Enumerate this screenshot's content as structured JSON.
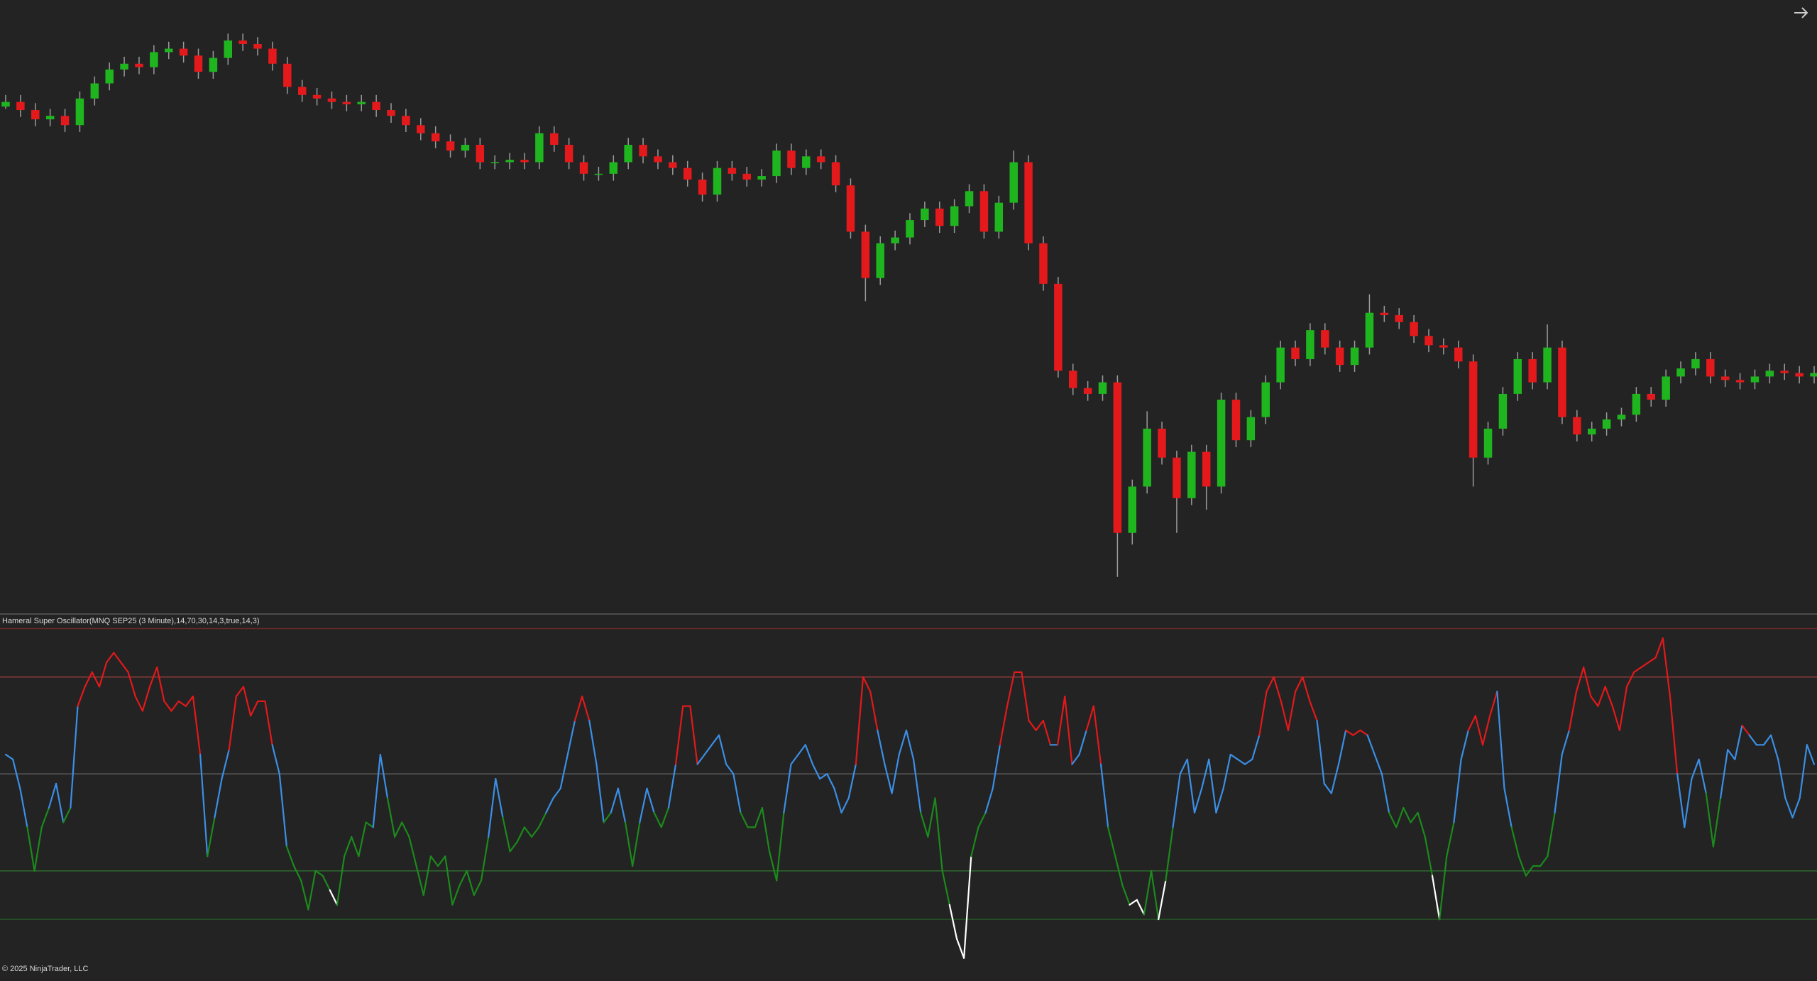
{
  "chart_data": [
    {
      "type": "candlestick",
      "open": [
        438,
        442,
        435,
        427,
        430,
        422,
        445,
        458,
        470,
        475,
        472,
        485,
        488,
        482,
        468,
        480,
        495,
        492,
        488,
        475,
        455,
        448,
        445,
        442,
        440,
        442,
        435,
        430,
        422,
        415,
        408,
        400,
        405,
        390,
        390,
        392,
        390,
        415,
        405,
        390,
        380,
        380,
        390,
        405,
        395,
        390,
        385,
        375,
        362,
        385,
        380,
        375,
        378,
        400,
        385,
        395,
        390,
        370,
        330,
        290,
        320,
        325,
        340,
        350,
        335,
        352,
        365,
        330,
        355,
        390,
        320,
        285,
        210,
        195,
        190,
        200,
        70,
        110,
        160,
        135,
        100,
        140,
        110,
        185,
        150,
        170,
        200,
        230,
        220,
        245,
        230,
        215,
        230,
        260,
        258,
        252,
        240,
        232,
        230,
        218,
        135,
        160,
        190,
        220,
        200,
        230,
        170,
        155,
        160,
        168,
        172,
        190,
        185,
        205,
        212,
        220,
        205,
        202,
        200,
        205,
        210,
        208,
        205
      ],
      "high": [
        448,
        448,
        441,
        436,
        436,
        451,
        464,
        476,
        481,
        481,
        491,
        494,
        494,
        488,
        486,
        501,
        501,
        498,
        494,
        481,
        461,
        454,
        451,
        448,
        448,
        448,
        441,
        436,
        428,
        421,
        414,
        411,
        411,
        396,
        398,
        398,
        421,
        421,
        411,
        396,
        386,
        396,
        411,
        411,
        401,
        396,
        391,
        381,
        391,
        391,
        386,
        384,
        406,
        406,
        401,
        401,
        396,
        376,
        336,
        326,
        331,
        346,
        356,
        356,
        358,
        371,
        371,
        361,
        400,
        396,
        326,
        291,
        216,
        201,
        206,
        206,
        116,
        175,
        166,
        141,
        146,
        146,
        191,
        191,
        176,
        206,
        236,
        236,
        251,
        251,
        236,
        236,
        276,
        266,
        264,
        258,
        246,
        238,
        236,
        224,
        166,
        196,
        226,
        226,
        250,
        236,
        176,
        166,
        174,
        178,
        196,
        196,
        211,
        218,
        226,
        226,
        211,
        208,
        211,
        216,
        216,
        214,
        214
      ],
      "low": [
        436,
        429,
        421,
        421,
        416,
        416,
        439,
        452,
        464,
        466,
        466,
        479,
        476,
        462,
        462,
        474,
        486,
        482,
        469,
        449,
        442,
        439,
        436,
        434,
        434,
        429,
        424,
        416,
        409,
        402,
        394,
        394,
        384,
        384,
        384,
        384,
        384,
        399,
        384,
        374,
        374,
        374,
        384,
        389,
        384,
        379,
        369,
        356,
        356,
        374,
        369,
        369,
        372,
        379,
        379,
        384,
        364,
        324,
        270,
        284,
        314,
        319,
        334,
        329,
        329,
        346,
        324,
        324,
        349,
        314,
        279,
        204,
        189,
        184,
        184,
        32,
        60,
        104,
        129,
        70,
        94,
        90,
        104,
        144,
        144,
        164,
        194,
        214,
        214,
        224,
        209,
        209,
        224,
        252,
        246,
        234,
        226,
        224,
        212,
        110,
        129,
        154,
        184,
        194,
        194,
        164,
        149,
        149,
        154,
        162,
        166,
        179,
        179,
        199,
        206,
        199,
        196,
        194,
        194,
        199,
        202,
        199,
        199
      ],
      "close": [
        442,
        435,
        427,
        430,
        422,
        445,
        458,
        470,
        475,
        472,
        485,
        488,
        482,
        468,
        480,
        495,
        492,
        488,
        475,
        455,
        448,
        445,
        442,
        440,
        442,
        435,
        430,
        422,
        415,
        408,
        400,
        405,
        390,
        390,
        392,
        390,
        415,
        405,
        390,
        380,
        380,
        390,
        405,
        395,
        390,
        385,
        375,
        362,
        385,
        380,
        375,
        378,
        400,
        385,
        395,
        390,
        370,
        330,
        290,
        320,
        325,
        340,
        350,
        335,
        352,
        365,
        330,
        355,
        390,
        320,
        285,
        210,
        195,
        190,
        200,
        70,
        110,
        160,
        135,
        100,
        140,
        110,
        185,
        150,
        170,
        200,
        230,
        220,
        245,
        230,
        215,
        230,
        260,
        258,
        252,
        240,
        232,
        230,
        218,
        135,
        160,
        190,
        220,
        200,
        230,
        170,
        155,
        160,
        168,
        172,
        190,
        185,
        205,
        212,
        220,
        205,
        202,
        200,
        205,
        210,
        208,
        205,
        208
      ],
      "ylim": [
        0,
        530
      ],
      "up_color": "#1fb51f",
      "down_color": "#e3191b",
      "wick_color": "#9a9a9a"
    },
    {
      "type": "line",
      "title": "Hameral Super Oscillator(MNQ SEP25 (3 Minute),14,70,30,14,3,true,14,3)",
      "values": [
        54,
        53,
        47,
        39,
        30,
        39,
        43,
        48,
        40,
        43,
        64,
        68,
        71,
        68,
        73,
        75,
        73,
        71,
        66,
        63,
        68,
        72,
        65,
        63,
        65,
        64,
        66,
        54,
        33,
        41,
        49,
        55,
        66,
        68,
        62,
        65,
        65,
        56,
        50,
        35,
        31,
        28,
        22,
        30,
        29,
        26,
        23,
        33,
        37,
        33,
        40,
        39,
        54,
        45,
        37,
        40,
        37,
        31,
        25,
        33,
        31,
        33,
        23,
        27,
        30,
        25,
        28,
        37,
        49,
        41,
        34,
        36,
        39,
        37,
        39,
        42,
        45,
        47,
        54,
        61,
        66,
        61,
        52,
        40,
        42,
        47,
        40,
        31,
        40,
        47,
        42,
        39,
        43,
        52,
        64,
        64,
        52,
        54,
        56,
        58,
        52,
        50,
        42,
        39,
        39,
        43,
        34,
        28,
        42,
        52,
        54,
        56,
        52,
        49,
        50,
        47,
        42,
        45,
        52,
        70,
        67,
        59,
        52,
        46,
        54,
        59,
        53,
        42,
        37,
        45,
        30,
        23,
        16,
        12,
        33,
        39,
        42,
        47,
        56,
        64,
        71,
        71,
        61,
        59,
        61,
        56,
        56,
        66,
        52,
        54,
        59,
        64,
        52,
        39,
        33,
        27,
        23,
        24,
        21,
        30,
        20,
        28,
        39,
        50,
        53,
        42,
        47,
        53,
        42,
        47,
        54,
        53,
        52,
        53,
        58,
        67,
        70,
        65,
        59,
        67,
        70,
        65,
        61,
        48,
        46,
        52,
        59,
        58,
        59,
        58,
        54,
        50,
        42,
        39,
        43,
        40,
        42,
        37,
        29,
        20,
        33,
        40,
        53,
        59,
        62,
        56,
        62,
        67,
        47,
        39,
        33,
        29,
        31,
        31,
        33,
        42,
        54,
        59,
        67,
        72,
        66,
        64,
        68,
        64,
        59,
        68,
        71,
        72,
        73,
        74,
        78,
        66,
        50,
        39,
        49,
        53,
        46,
        35,
        45,
        55,
        53,
        60,
        58,
        56,
        56,
        58,
        53,
        45,
        41,
        45,
        56,
        52
      ],
      "ylim": [
        8,
        83
      ],
      "levels": [
        {
          "value": 80,
          "color": "#6a2a2a"
        },
        {
          "value": 70,
          "color": "#8a3a38"
        },
        {
          "value": 50,
          "color": "#5c5c5c"
        },
        {
          "value": 30,
          "color": "#2f6a2f"
        },
        {
          "value": 20,
          "color": "#245424"
        }
      ],
      "color_bands": [
        {
          "from": 58,
          "color": "#e3191b"
        },
        {
          "from": 42,
          "color": "#3b8fe6"
        },
        {
          "from": 25,
          "color": "#1c8a1c"
        },
        {
          "from": 0,
          "color": "#ffffff"
        }
      ]
    }
  ],
  "footer": "© 2025 NinjaTrader, LLC"
}
